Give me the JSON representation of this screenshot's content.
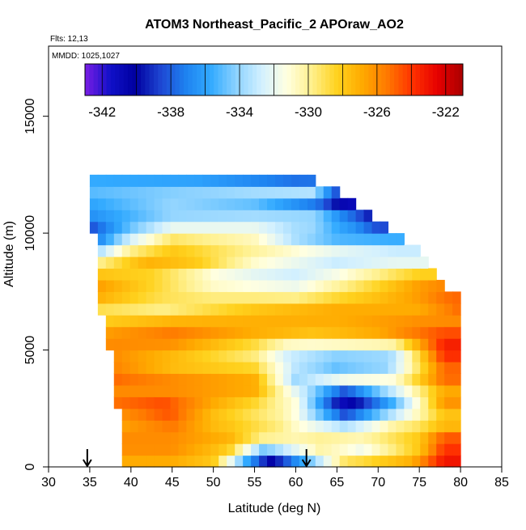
{
  "chart_data": {
    "type": "heatmap",
    "title": "ATOM3 Northeast_Pacific_2 APOraw_AO2",
    "annotations": [
      "Flts: 12,13",
      "MMDD: 1025,1027"
    ],
    "xlabel": "Latitude (deg N)",
    "ylabel": "Altitude (m)",
    "xlim": [
      30,
      85
    ],
    "ylim": [
      0,
      18000
    ],
    "x_ticks": [
      "30",
      "35",
      "40",
      "45",
      "50",
      "55",
      "60",
      "65",
      "70",
      "75",
      "80",
      "85"
    ],
    "y_ticks": [
      "0",
      "5000",
      "10000",
      "15000"
    ],
    "colorbar": {
      "range": [
        -343,
        -321
      ],
      "tick_labels": [
        "-342",
        "-338",
        "-334",
        "-330",
        "-326",
        "-322"
      ],
      "colors": [
        "#7a1ee6",
        "#1010c8",
        "#0000a0",
        "#1e46d2",
        "#1e82f0",
        "#32aaff",
        "#8cd2ff",
        "#d2f0ff",
        "#ffffe1",
        "#fff08c",
        "#ffd21e",
        "#ffaa00",
        "#ff7800",
        "#ff3200",
        "#e60000",
        "#aa0000"
      ]
    },
    "arrows_x": [
      34.7,
      61.3
    ],
    "curtain_data": {
      "x_range": [
        35,
        80
      ],
      "y_range": [
        0,
        12500
      ],
      "n_cols": 46,
      "n_rows": 25,
      "top_edge": [
        [
          35,
          12500
        ],
        [
          45,
          12500
        ],
        [
          55,
          12500
        ],
        [
          61,
          12500
        ],
        [
          62,
          12400
        ],
        [
          64,
          12000
        ],
        [
          66,
          11500
        ],
        [
          68,
          11000
        ],
        [
          70,
          10500
        ],
        [
          72,
          10000
        ],
        [
          74,
          9500
        ],
        [
          76,
          8800
        ],
        [
          78,
          7800
        ],
        [
          80,
          7400
        ]
      ],
      "bottom_edge": [
        [
          35,
          11500
        ],
        [
          35.5,
          10000
        ],
        [
          35.5,
          8000
        ],
        [
          36,
          7000
        ],
        [
          36.5,
          6500
        ],
        [
          37,
          5500
        ],
        [
          38,
          4000
        ],
        [
          38.5,
          2000
        ],
        [
          39,
          500
        ],
        [
          39,
          0
        ]
      ],
      "bands": [
        [
          12500,
          [
            [
              35,
              -336
            ],
            [
              48,
              -337
            ],
            [
              60,
              -340
            ]
          ]
        ],
        [
          11800,
          [
            [
              35,
              -335
            ],
            [
              50,
              -334
            ],
            [
              62,
              -333
            ],
            [
              66,
              -340
            ]
          ]
        ],
        [
          11200,
          [
            [
              35,
              -336
            ],
            [
              45,
              -334
            ],
            [
              55,
              -335
            ],
            [
              63,
              -338
            ],
            [
              66,
              -341
            ]
          ]
        ],
        [
          10500,
          [
            [
              35,
              -337
            ],
            [
              45,
              -334
            ],
            [
              55,
              -333
            ],
            [
              62,
              -332
            ],
            [
              67,
              -336
            ],
            [
              70,
              -340
            ]
          ]
        ],
        [
          10000,
          [
            [
              35,
              -340
            ],
            [
              40,
              -334
            ],
            [
              45,
              -330
            ],
            [
              55,
              -331
            ],
            [
              60,
              -335
            ],
            [
              65,
              -337
            ],
            [
              70,
              -337
            ]
          ]
        ],
        [
          9300,
          [
            [
              35,
              -335
            ],
            [
              40,
              -330
            ],
            [
              45,
              -328
            ],
            [
              55,
              -330
            ],
            [
              65,
              -332
            ],
            [
              72,
              -333
            ]
          ]
        ],
        [
          8700,
          [
            [
              35,
              -330
            ],
            [
              42,
              -327
            ],
            [
              48,
              -328
            ],
            [
              55,
              -331
            ],
            [
              65,
              -333
            ],
            [
              72,
              -332
            ]
          ]
        ],
        [
          8100,
          [
            [
              35,
              -327
            ],
            [
              43,
              -329
            ],
            [
              50,
              -332
            ],
            [
              60,
              -333
            ],
            [
              70,
              -329
            ],
            [
              75,
              -327
            ]
          ]
        ],
        [
          7500,
          [
            [
              36,
              -326
            ],
            [
              42,
              -328
            ],
            [
              50,
              -330
            ],
            [
              60,
              -331
            ],
            [
              70,
              -328
            ],
            [
              78,
              -325
            ]
          ]
        ],
        [
          6800,
          [
            [
              36,
              -329
            ],
            [
              44,
              -330
            ],
            [
              55,
              -328
            ],
            [
              65,
              -327
            ],
            [
              75,
              -327
            ],
            [
              80,
              -325
            ]
          ]
        ],
        [
          6200,
          [
            [
              37,
              -328
            ],
            [
              45,
              -327
            ],
            [
              55,
              -327
            ],
            [
              65,
              -327
            ],
            [
              75,
              -326
            ],
            [
              80,
              -326
            ]
          ]
        ],
        [
          5600,
          [
            [
              37,
              -326
            ],
            [
              45,
              -325
            ],
            [
              55,
              -327
            ],
            [
              62,
              -328
            ],
            [
              70,
              -327
            ],
            [
              78,
              -324
            ]
          ]
        ],
        [
          5000,
          [
            [
              38,
              -326
            ],
            [
              45,
              -327
            ],
            [
              55,
              -330
            ],
            [
              59,
              -333
            ],
            [
              67,
              -333
            ],
            [
              72,
              -333
            ],
            [
              78,
              -323
            ]
          ]
        ],
        [
          4400,
          [
            [
              38,
              -326
            ],
            [
              45,
              -328
            ],
            [
              55,
              -329
            ],
            [
              60,
              -333
            ],
            [
              65,
              -336
            ],
            [
              71,
              -335
            ],
            [
              78,
              -325
            ]
          ]
        ],
        [
          3800,
          [
            [
              38,
              -325
            ],
            [
              45,
              -326
            ],
            [
              55,
              -327
            ],
            [
              60,
              -334
            ],
            [
              66,
              -331
            ],
            [
              72,
              -331
            ],
            [
              78,
              -325
            ]
          ]
        ],
        [
          3200,
          [
            [
              38,
              -326
            ],
            [
              45,
              -326
            ],
            [
              55,
              -327
            ],
            [
              61,
              -333
            ],
            [
              66,
              -339
            ],
            [
              72,
              -333
            ],
            [
              78,
              -327
            ]
          ]
        ],
        [
          2600,
          [
            [
              38,
              -325
            ],
            [
              44,
              -324
            ],
            [
              50,
              -327
            ],
            [
              60,
              -331
            ],
            [
              66,
              -342
            ],
            [
              72,
              -336
            ],
            [
              78,
              -326
            ]
          ]
        ],
        [
          2000,
          [
            [
              39,
              -327
            ],
            [
              45,
              -325
            ],
            [
              50,
              -328
            ],
            [
              58,
              -330
            ],
            [
              66,
              -336
            ],
            [
              72,
              -331
            ],
            [
              78,
              -329
            ]
          ]
        ],
        [
          1400,
          [
            [
              39,
              -326
            ],
            [
              45,
              -326
            ],
            [
              52,
              -327
            ],
            [
              60,
              -330
            ],
            [
              68,
              -330
            ],
            [
              75,
              -328
            ],
            [
              78,
              -325
            ]
          ]
        ],
        [
          800,
          [
            [
              39,
              -326
            ],
            [
              45,
              -326
            ],
            [
              52,
              -328
            ],
            [
              56,
              -334
            ],
            [
              63,
              -330
            ],
            [
              68,
              -332
            ],
            [
              75,
              -328
            ],
            [
              78,
              -324
            ]
          ]
        ],
        [
          200,
          [
            [
              39,
              -327
            ],
            [
              45,
              -327
            ],
            [
              50,
              -328
            ],
            [
              54,
              -336
            ],
            [
              57,
              -341
            ],
            [
              61,
              -336
            ],
            [
              66,
              -329
            ],
            [
              74,
              -327
            ],
            [
              78,
              -323
            ]
          ]
        ]
      ]
    }
  }
}
